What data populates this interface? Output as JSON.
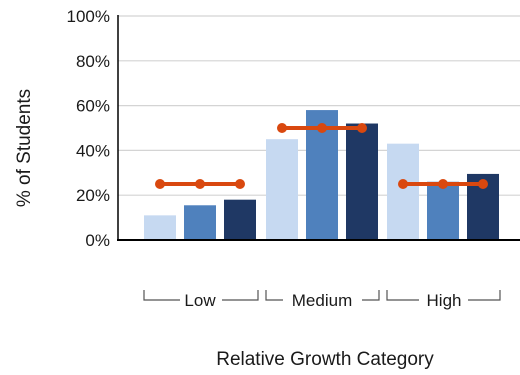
{
  "chart_data": {
    "type": "bar",
    "xlabel": "Relative Growth Category",
    "ylabel": "% of Students",
    "ylim": [
      0,
      100
    ],
    "yticks": [
      0,
      20,
      40,
      60,
      80,
      100
    ],
    "ytick_labels": [
      "0%",
      "20%",
      "40%",
      "60%",
      "80%",
      "100%"
    ],
    "grid": true,
    "legend": "none",
    "categories": [
      "Low",
      "Medium",
      "High"
    ],
    "series": [
      {
        "color": "#c6d9f1",
        "values": [
          11,
          45,
          43
        ]
      },
      {
        "color": "#4f81bd",
        "values": [
          15.5,
          58,
          26
        ]
      },
      {
        "color": "#1f3864",
        "values": [
          18,
          52,
          29.5
        ]
      }
    ],
    "reference": {
      "color": "#d9480f",
      "values": [
        25,
        50,
        25
      ]
    }
  }
}
